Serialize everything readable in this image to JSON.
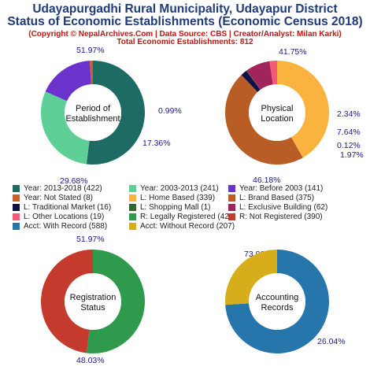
{
  "header": {
    "title_line1": "Udayapurgadhi Rural Municipality, Udayapur District",
    "title_line2": "Status of Economic Establishments (Economic Census 2018)",
    "copyright": "(Copyright © NepalArchives.Com | Data Source: CBS | Creator/Analyst: Milan Karki)",
    "total": "Total Economic Establishments: 812"
  },
  "chart_data": [
    {
      "type": "pie",
      "variant": "donut",
      "center_label": [
        "Period of",
        "Establishment"
      ],
      "slices": [
        {
          "label": "Year: 2013-2018",
          "value": 422,
          "pct": "51.97%",
          "color": "#1d6b63"
        },
        {
          "label": "Year: 2003-2013",
          "value": 241,
          "pct": "29.68%",
          "color": "#5fcf98"
        },
        {
          "label": "Year: Before 2003",
          "value": 141,
          "pct": "17.36%",
          "color": "#6a33cc"
        },
        {
          "label": "Year: Not Stated",
          "value": 8,
          "pct": "0.99%",
          "color": "#c8622a"
        }
      ]
    },
    {
      "type": "pie",
      "variant": "donut",
      "center_label": [
        "Physical",
        "Location"
      ],
      "slices": [
        {
          "label": "L: Home Based",
          "value": 339,
          "pct": "41.75%",
          "color": "#fbb340"
        },
        {
          "label": "L: Brand Based",
          "value": 375,
          "pct": "46.18%",
          "color": "#b85d26"
        },
        {
          "label": "L: Traditional Market",
          "value": 16,
          "pct": "1.97%",
          "color": "#101048"
        },
        {
          "label": "L: Shopping Mall",
          "value": 1,
          "pct": "0.12%",
          "color": "#2e6a2e"
        },
        {
          "label": "L: Exclusive Building",
          "value": 62,
          "pct": "7.64%",
          "color": "#a1245a"
        },
        {
          "label": "L: Other Locations",
          "value": 19,
          "pct": "2.34%",
          "color": "#f25a78"
        }
      ]
    },
    {
      "type": "pie",
      "variant": "donut",
      "center_label": [
        "Registration",
        "Status"
      ],
      "slices": [
        {
          "label": "R: Legally Registered",
          "value": 422,
          "pct": "51.97%",
          "color": "#2f9a4c"
        },
        {
          "label": "R: Not Registered",
          "value": 390,
          "pct": "48.03%",
          "color": "#c43a2c"
        }
      ]
    },
    {
      "type": "pie",
      "variant": "donut",
      "center_label": [
        "Accounting",
        "Records"
      ],
      "slices": [
        {
          "label": "Acct: With Record",
          "value": 588,
          "pct": "73.96%",
          "color": "#2675ab"
        },
        {
          "label": "Acct: Without Record",
          "value": 207,
          "pct": "26.04%",
          "color": "#d6ad1a"
        }
      ]
    }
  ],
  "legend": [
    {
      "text": "Year: 2013-2018 (422)",
      "color": "#1d6b63"
    },
    {
      "text": "Year: 2003-2013 (241)",
      "color": "#5fcf98"
    },
    {
      "text": "Year: Before 2003 (141)",
      "color": "#6a33cc"
    },
    {
      "text": "Year: Not Stated (8)",
      "color": "#c8622a"
    },
    {
      "text": "L: Home Based (339)",
      "color": "#fbb340"
    },
    {
      "text": "L: Brand Based (375)",
      "color": "#b85d26"
    },
    {
      "text": "L: Traditional Market (16)",
      "color": "#101048"
    },
    {
      "text": "L: Shopping Mall (1)",
      "color": "#2e6a2e"
    },
    {
      "text": "L: Exclusive Building (62)",
      "color": "#a1245a"
    },
    {
      "text": "L: Other Locations (19)",
      "color": "#f25a78"
    },
    {
      "text": "R: Legally Registered (422)",
      "color": "#2f9a4c"
    },
    {
      "text": "R: Not Registered (390)",
      "color": "#c43a2c"
    },
    {
      "text": "Acct: With Record (588)",
      "color": "#2675ab"
    },
    {
      "text": "Acct: Without Record (207)",
      "color": "#d6ad1a"
    }
  ]
}
